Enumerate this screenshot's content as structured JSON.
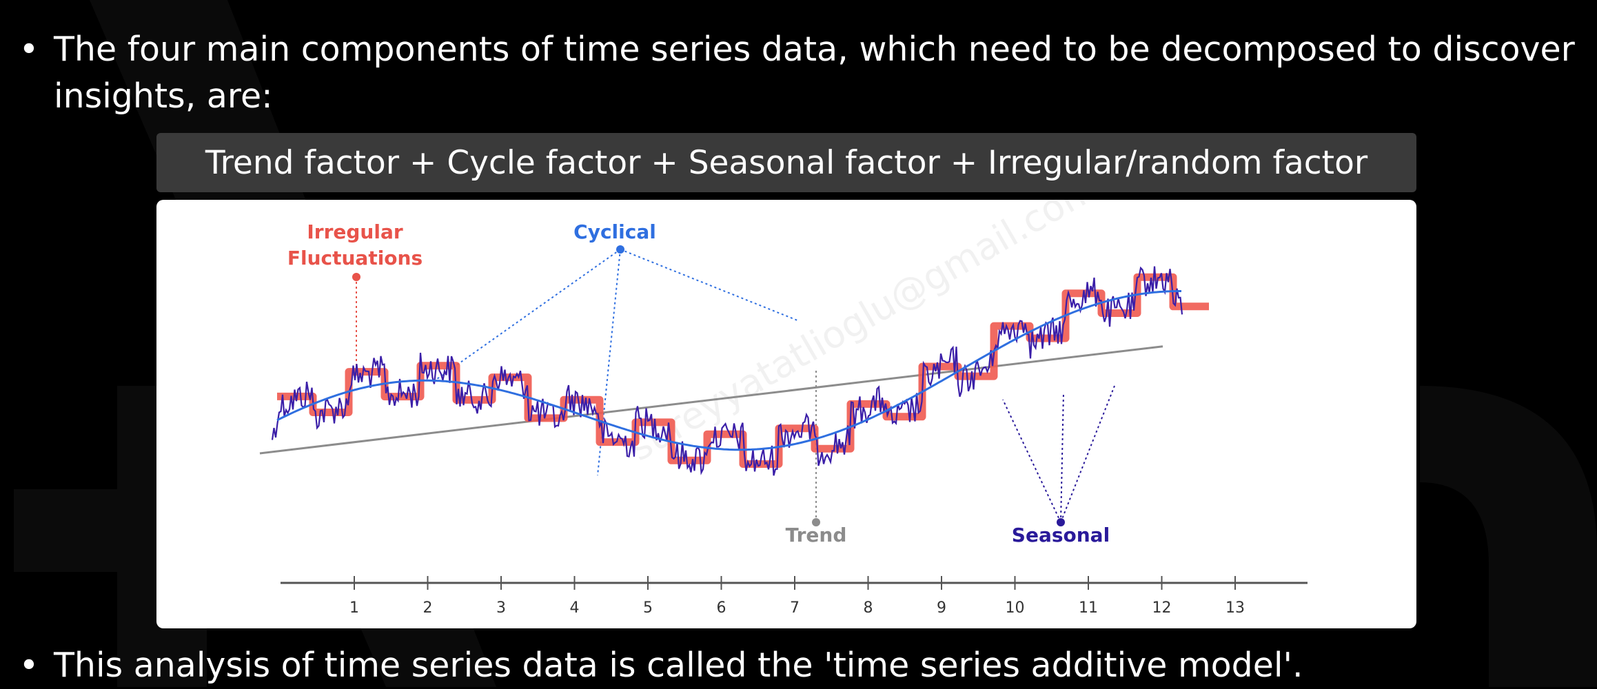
{
  "bullets": [
    {
      "symbol": "•",
      "text": "The four main components of time series data, which need to be decomposed to discover insights, are:"
    },
    {
      "symbol": "•",
      "text": "This analysis of time series data is called the 'time series additive model'."
    }
  ],
  "equation": "Trend factor + Cycle factor + Seasonal factor + Irregular/random factor",
  "diagram": {
    "labels": {
      "irregular_line1": "Irregular",
      "irregular_line2": "Fluctuations",
      "cyclical": "Cyclical",
      "trend": "Trend",
      "seasonal": "Seasonal"
    },
    "axis_ticks": [
      "1",
      "2",
      "3",
      "4",
      "5",
      "6",
      "7",
      "8",
      "9",
      "10",
      "11",
      "12",
      "13"
    ],
    "watermark": "sureyyatatlioglu@gmail.com"
  },
  "colors": {
    "irregular": "#e8534a",
    "cyclical": "#2f6fe0",
    "trend": "#8c8c8c",
    "seasonal": "#2a1a9a",
    "noise": "#3b1fa8",
    "seasonal_band": "#f05a50",
    "equation_bar": "#3a3a3a",
    "background": "#000000"
  }
}
